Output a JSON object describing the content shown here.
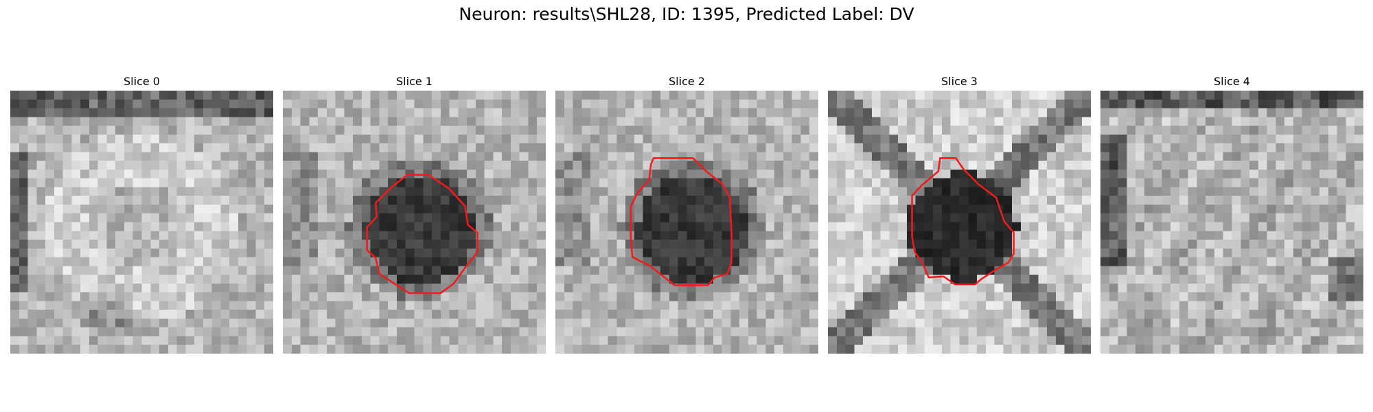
{
  "figure": {
    "title": "Neuron: results\\SHL28, ID: 1395, Predicted Label: DV",
    "grid_size": 30,
    "contour_color": "#ee1c1c",
    "panels": [
      {
        "title": "Slice 0",
        "pattern": "bright-ring",
        "seed": 11,
        "contour": []
      },
      {
        "title": "Slice 1",
        "pattern": "dark-blob",
        "seed": 23,
        "contour": [
          [
            14.2,
            9.6
          ],
          [
            16.6,
            9.6
          ],
          [
            19.0,
            11.2
          ],
          [
            20.8,
            13.2
          ],
          [
            21.1,
            15.3
          ],
          [
            22.2,
            16.2
          ],
          [
            22.2,
            18.4
          ],
          [
            20.8,
            20.2
          ],
          [
            19.5,
            22.0
          ],
          [
            18.0,
            23.1
          ],
          [
            14.4,
            23.1
          ],
          [
            11.0,
            20.9
          ],
          [
            10.6,
            19.1
          ],
          [
            9.6,
            18.2
          ],
          [
            9.6,
            15.6
          ],
          [
            10.7,
            14.4
          ],
          [
            10.6,
            12.8
          ],
          [
            12.3,
            11.1
          ]
        ]
      },
      {
        "title": "Slice 2",
        "pattern": "dark-blob",
        "seed": 37,
        "contour": [
          [
            11.2,
            7.7
          ],
          [
            15.7,
            7.7
          ],
          [
            17.2,
            9.2
          ],
          [
            19.0,
            10.6
          ],
          [
            19.9,
            12.2
          ],
          [
            20.1,
            16.3
          ],
          [
            20.1,
            19.6
          ],
          [
            19.6,
            20.9
          ],
          [
            18.2,
            21.3
          ],
          [
            17.4,
            22.2
          ],
          [
            13.6,
            22.2
          ],
          [
            12.2,
            21.1
          ],
          [
            10.8,
            20.0
          ],
          [
            8.8,
            19.0
          ],
          [
            8.6,
            16.8
          ],
          [
            8.6,
            13.2
          ],
          [
            9.4,
            11.6
          ],
          [
            10.7,
            10.2
          ],
          [
            10.9,
            8.4
          ]
        ]
      },
      {
        "title": "Slice 3",
        "pattern": "dark-x",
        "seed": 51,
        "contour": [
          [
            12.8,
            7.7
          ],
          [
            14.6,
            7.7
          ],
          [
            15.5,
            9.0
          ],
          [
            17.2,
            10.7
          ],
          [
            19.2,
            12.2
          ],
          [
            20.1,
            14.9
          ],
          [
            21.2,
            16.2
          ],
          [
            21.2,
            18.6
          ],
          [
            20.6,
            19.6
          ],
          [
            19.2,
            20.4
          ],
          [
            17.5,
            21.5
          ],
          [
            16.8,
            22.1
          ],
          [
            14.5,
            22.1
          ],
          [
            13.2,
            21.2
          ],
          [
            11.5,
            21.3
          ],
          [
            10.7,
            19.5
          ],
          [
            9.9,
            18.4
          ],
          [
            9.6,
            16.7
          ],
          [
            9.6,
            12.0
          ],
          [
            10.6,
            10.9
          ],
          [
            12.6,
            9.2
          ]
        ]
      },
      {
        "title": "Slice 4",
        "pattern": "textured",
        "seed": 67,
        "contour": []
      }
    ]
  }
}
